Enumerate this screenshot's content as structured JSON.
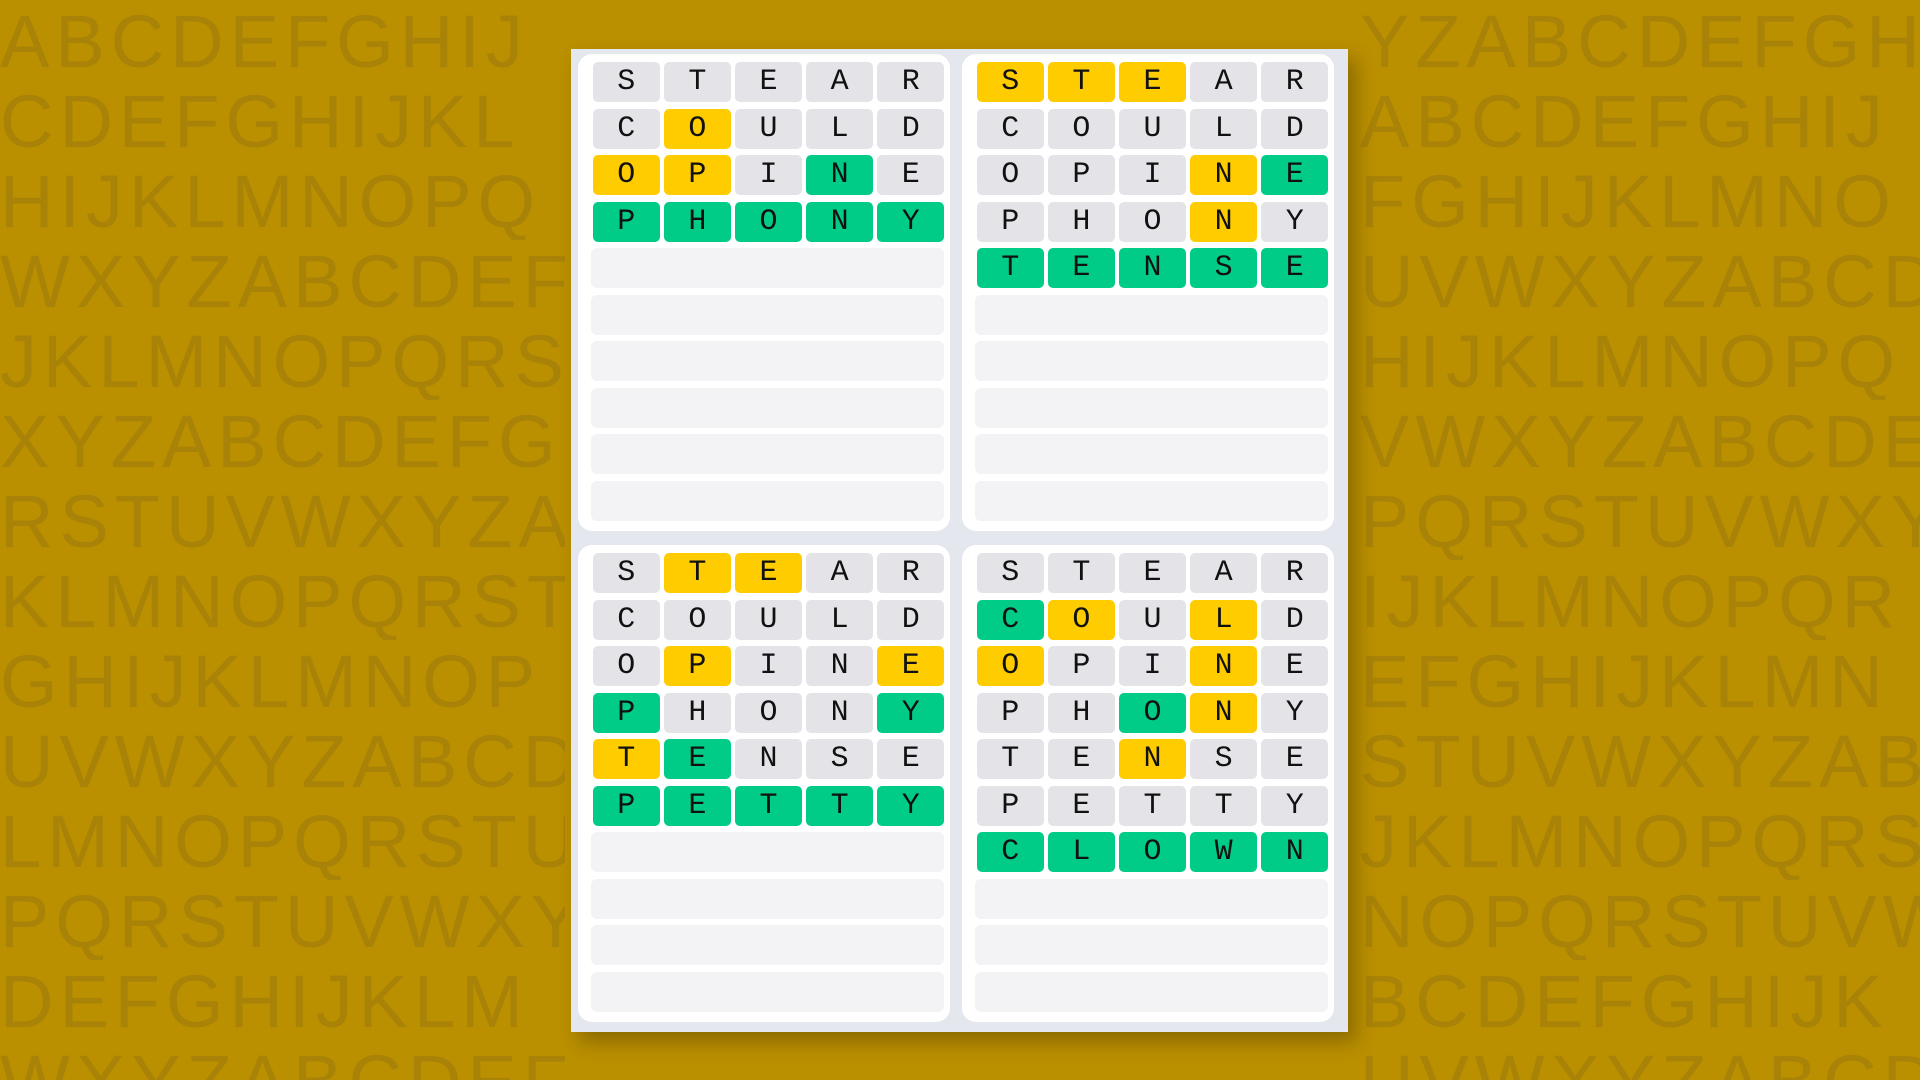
{
  "watermark": {
    "alphabet": "ABCDEFGHIJKLMNOPQRSTUVWXYZ",
    "row_start_letters": [
      "A",
      "C",
      "H",
      "W",
      "J",
      "X",
      "R",
      "K",
      "G",
      "U",
      "L",
      "P",
      "D",
      "W"
    ]
  },
  "colors": {
    "background": "#ba8f00",
    "yellow": "#ffcc00",
    "green": "#00cc88",
    "gray": "#e4e4e8",
    "empty": "#f3f3f5"
  },
  "total_rows": 10,
  "boards": [
    {
      "guesses": [
        {
          "word": "STEAR",
          "states": "-----"
        },
        {
          "word": "COULD",
          "states": "-y---"
        },
        {
          "word": "OPINE",
          "states": "yy-g-"
        },
        {
          "word": "PHONY",
          "states": "ggggg"
        }
      ]
    },
    {
      "guesses": [
        {
          "word": "STEAR",
          "states": "yyy--"
        },
        {
          "word": "COULD",
          "states": "-----"
        },
        {
          "word": "OPINE",
          "states": "---yg"
        },
        {
          "word": "PHONY",
          "states": "---y-"
        },
        {
          "word": "TENSE",
          "states": "ggggg"
        }
      ]
    },
    {
      "guesses": [
        {
          "word": "STEAR",
          "states": "-yy--"
        },
        {
          "word": "COULD",
          "states": "-----"
        },
        {
          "word": "OPINE",
          "states": "-y--y"
        },
        {
          "word": "PHONY",
          "states": "g---g"
        },
        {
          "word": "TENSE",
          "states": "yg---"
        },
        {
          "word": "PETTY",
          "states": "ggggg"
        }
      ]
    },
    {
      "guesses": [
        {
          "word": "STEAR",
          "states": "-----"
        },
        {
          "word": "COULD",
          "states": "gy-y-"
        },
        {
          "word": "OPINE",
          "states": "y--y-"
        },
        {
          "word": "PHONY",
          "states": "--gy-"
        },
        {
          "word": "TENSE",
          "states": "--y--"
        },
        {
          "word": "PETTY",
          "states": "-----"
        },
        {
          "word": "CLOWN",
          "states": "ggggg"
        }
      ]
    }
  ]
}
